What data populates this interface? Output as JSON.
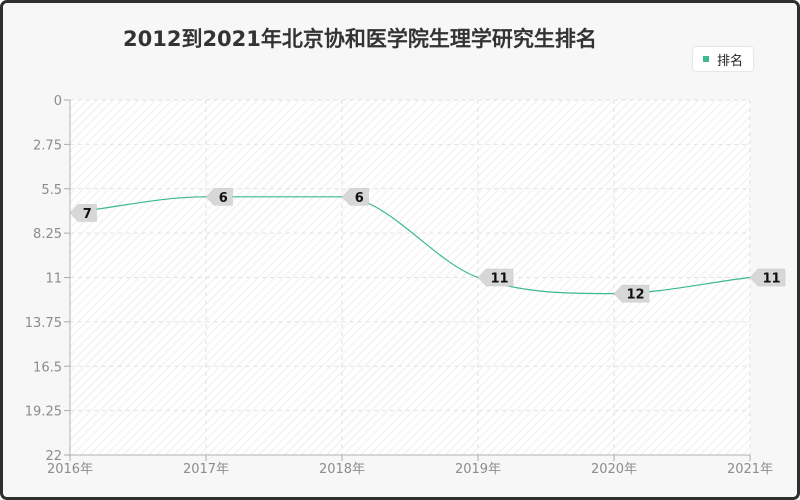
{
  "title": "2012到2021年北京协和医学院生理学研究生排名",
  "legend": {
    "label": "排名"
  },
  "colors": {
    "line": "#3cb98e",
    "label_bg": "#d7d7d7",
    "grid": "#e2e2e2"
  },
  "chart_data": {
    "type": "line",
    "title": "2012到2021年北京协和医学院生理学研究生排名",
    "xlabel": "",
    "ylabel": "",
    "y_inverted": true,
    "categories": [
      "2016年",
      "2017年",
      "2018年",
      "2019年",
      "2020年",
      "2021年"
    ],
    "series": [
      {
        "name": "排名",
        "values": [
          7,
          6,
          6,
          11,
          12,
          11
        ]
      }
    ],
    "yticks": [
      0,
      2.75,
      5.5,
      8.25,
      11,
      13.75,
      16.5,
      19.25,
      22
    ],
    "ytick_labels": [
      "0",
      "2.75",
      "5.5",
      "8.25",
      "11",
      "13.75",
      "16.5",
      "19.25",
      "22"
    ],
    "ylim": [
      0,
      22
    ],
    "grid": true,
    "legend_position": "top-right",
    "data_labels": [
      "7",
      "6",
      "6",
      "11",
      "12",
      "11"
    ]
  }
}
